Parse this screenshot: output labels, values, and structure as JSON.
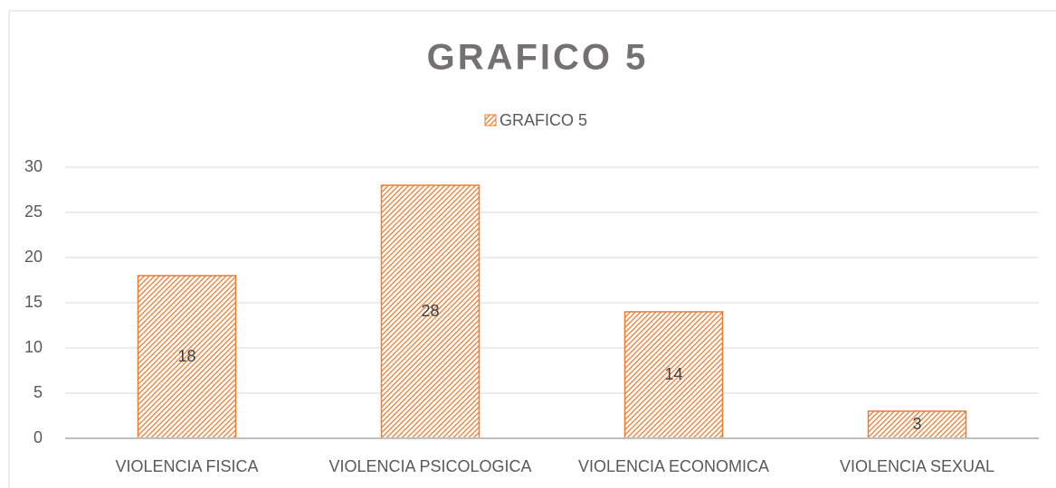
{
  "chart_data": {
    "type": "bar",
    "title": "GRAFICO 5",
    "categories": [
      "VIOLENCIA FISICA",
      "VIOLENCIA PSICOLOGICA",
      "VIOLENCIA ECONOMICA",
      "VIOLENCIA SEXUAL"
    ],
    "series": [
      {
        "name": "GRAFICO 5",
        "color": "#ed7d31",
        "values": [
          18,
          28,
          14,
          3
        ]
      }
    ],
    "ylim": [
      0,
      30
    ],
    "yticks": [
      0,
      5,
      10,
      15,
      20,
      25,
      30
    ],
    "grid": true,
    "legend": "top"
  }
}
